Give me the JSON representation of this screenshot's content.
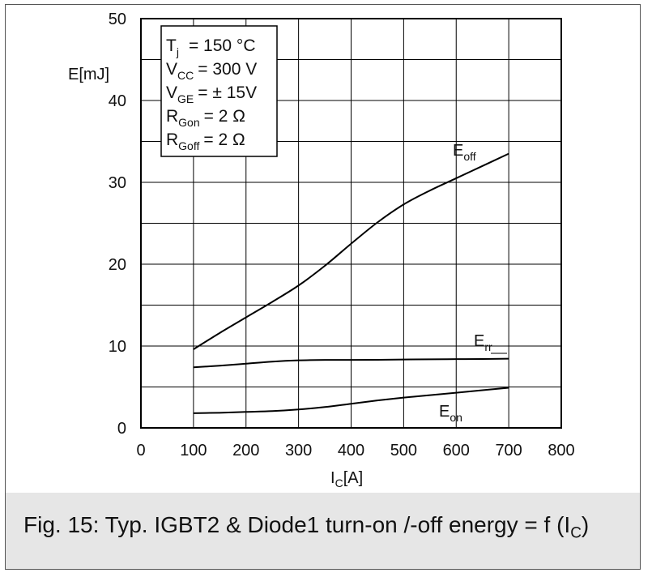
{
  "chart_data": {
    "type": "line",
    "title": "",
    "xlabel": {
      "main": "I",
      "sub": "C",
      "unit": "[A]"
    },
    "ylabel": "E[mJ]",
    "xlim": [
      0,
      800
    ],
    "ylim": [
      0,
      50
    ],
    "x_ticks": [
      "0",
      "100",
      "200",
      "300",
      "400",
      "500",
      "600",
      "700",
      "800"
    ],
    "y_ticks": [
      "0",
      "10",
      "20",
      "30",
      "40",
      "50"
    ],
    "grid": true,
    "series": [
      {
        "name": "Eoff",
        "label_main": "E",
        "label_sub": "off",
        "x": [
          100,
          150,
          200,
          250,
          300,
          350,
          400,
          450,
          500,
          550,
          600,
          650,
          700
        ],
        "y": [
          9.6,
          11.6,
          13.5,
          15.4,
          17.4,
          19.8,
          22.5,
          25.1,
          27.3,
          29.0,
          30.5,
          32.0,
          33.5
        ]
      },
      {
        "name": "Err",
        "label_main": "E",
        "label_sub": "rr",
        "x": [
          100,
          150,
          200,
          250,
          300,
          350,
          400,
          450,
          500,
          550,
          600,
          650,
          700
        ],
        "y": [
          7.4,
          7.6,
          7.85,
          8.1,
          8.25,
          8.3,
          8.3,
          8.32,
          8.35,
          8.38,
          8.4,
          8.42,
          8.45
        ]
      },
      {
        "name": "Eon",
        "label_main": "E",
        "label_sub": "on",
        "x": [
          100,
          150,
          200,
          250,
          300,
          350,
          400,
          450,
          500,
          550,
          600,
          650,
          700
        ],
        "y": [
          1.8,
          1.85,
          1.95,
          2.05,
          2.25,
          2.55,
          2.95,
          3.35,
          3.7,
          4.0,
          4.3,
          4.6,
          4.9
        ]
      }
    ],
    "conditions": [
      {
        "main": "T",
        "sub": "j",
        "value": "= 150 °C"
      },
      {
        "main": "V",
        "sub": "CC",
        "value": "= 300 V"
      },
      {
        "main": "V",
        "sub": "GE",
        "value": "= ± 15V"
      },
      {
        "main": "R",
        "sub": "Gon",
        "value": "= 2 Ω"
      },
      {
        "main": "R",
        "sub": "Goff",
        "value": "= 2 Ω"
      }
    ]
  },
  "caption": {
    "before": "Fig. 15: Typ. IGBT2 & Diode1 turn-on /-off energy = f (I",
    "sub": "C",
    "after": ")"
  },
  "colors": {
    "line": "#000000",
    "grid": "#000000",
    "caption_band": "#e6e6e6"
  }
}
